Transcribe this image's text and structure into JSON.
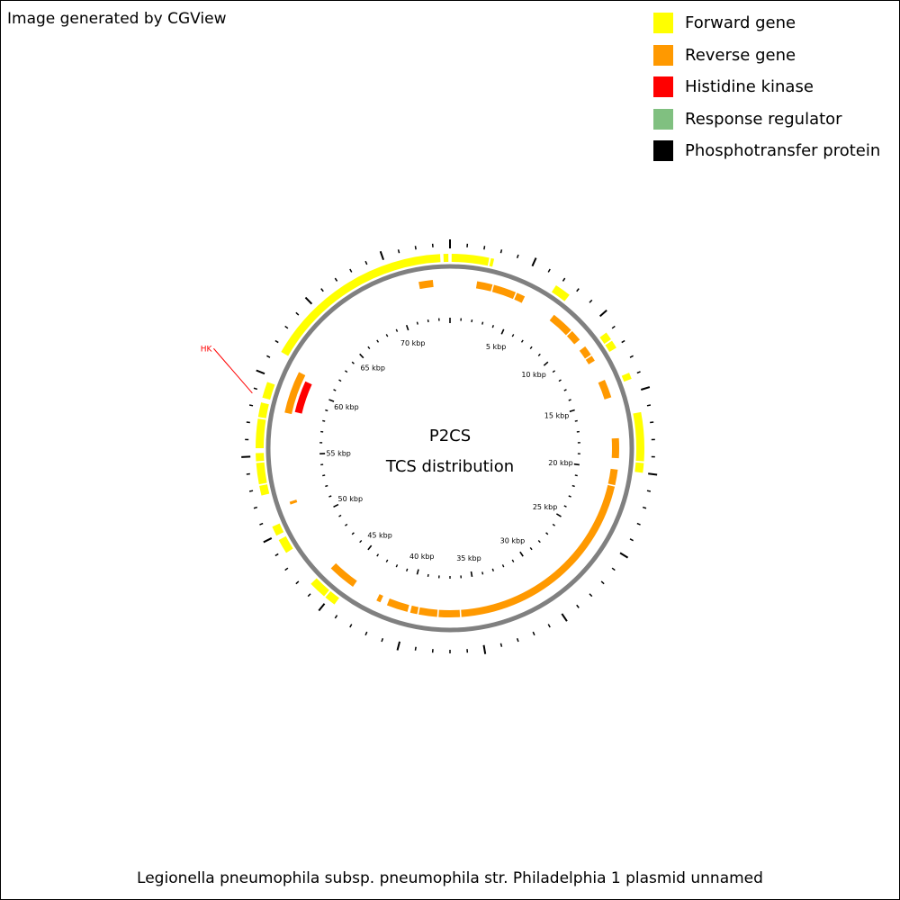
{
  "credit": "Image generated by CGView",
  "legend": [
    {
      "label": "Forward gene",
      "color": "#ffff00"
    },
    {
      "label": "Reverse gene",
      "color": "#ff9900"
    },
    {
      "label": "Histidine kinase",
      "color": "#ff0000"
    },
    {
      "label": "Response regulator",
      "color": "#80c080"
    },
    {
      "label": "Phosphotransfer protein",
      "color": "#000000"
    }
  ],
  "center": {
    "line1": "P2CS",
    "line2": "TCS distribution"
  },
  "footer": "Legionella pneumophila subsp. pneumophila str. Philadelphia 1 plasmid unnamed",
  "map": {
    "genome_length_kbp": 74,
    "backbone_color": "#808080",
    "kbp_labels": [
      "5 kbp",
      "10 kbp",
      "15 kbp",
      "20 kbp",
      "25 kbp",
      "30 kbp",
      "35 kbp",
      "40 kbp",
      "45 kbp",
      "50 kbp",
      "55 kbp",
      "60 kbp",
      "65 kbp",
      "70 kbp"
    ],
    "forward_genes": [
      [
        0.1,
        2.4
      ],
      [
        2.5,
        2.7
      ],
      [
        6.8,
        7.8
      ],
      [
        11.0,
        11.5
      ],
      [
        11.6,
        12.1
      ],
      [
        13.8,
        14.2
      ],
      [
        16.3,
        19.3
      ],
      [
        19.4,
        20.0
      ],
      [
        44.5,
        45.2
      ],
      [
        45.3,
        46.4
      ],
      [
        48.8,
        49.7
      ],
      [
        50.0,
        50.6
      ],
      [
        52.6,
        53.2
      ],
      [
        53.3,
        54.6
      ],
      [
        54.7,
        55.2
      ],
      [
        55.5,
        57.3
      ],
      [
        57.4,
        58.3
      ],
      [
        58.6,
        59.6
      ],
      [
        61.6,
        73.4
      ],
      [
        73.6,
        73.9
      ]
    ],
    "reverse_genes": [
      [
        1.9,
        3.0
      ],
      [
        3.1,
        4.7
      ],
      [
        4.8,
        5.4
      ],
      [
        7.8,
        9.4
      ],
      [
        9.5,
        10.3
      ],
      [
        10.9,
        11.6
      ],
      [
        11.7,
        12.1
      ],
      [
        13.6,
        14.9
      ],
      [
        17.8,
        19.2
      ],
      [
        20.0,
        21.1
      ],
      [
        21.2,
        36.2
      ],
      [
        36.3,
        37.8
      ],
      [
        37.9,
        39.2
      ],
      [
        39.3,
        39.8
      ],
      [
        40.0,
        41.5
      ],
      [
        42.0,
        42.3
      ],
      [
        44.2,
        46.2
      ],
      [
        51.5,
        51.7
      ],
      [
        58.0,
        61.0
      ],
      [
        71.8,
        72.8
      ]
    ],
    "tcs_genes": [
      {
        "type": "Histidine kinase",
        "start": 58.2,
        "end": 60.6,
        "color": "#ff0000"
      }
    ],
    "feature_labels": [
      {
        "text": "HK",
        "position": 58.7,
        "color": "#ff0000"
      }
    ]
  }
}
